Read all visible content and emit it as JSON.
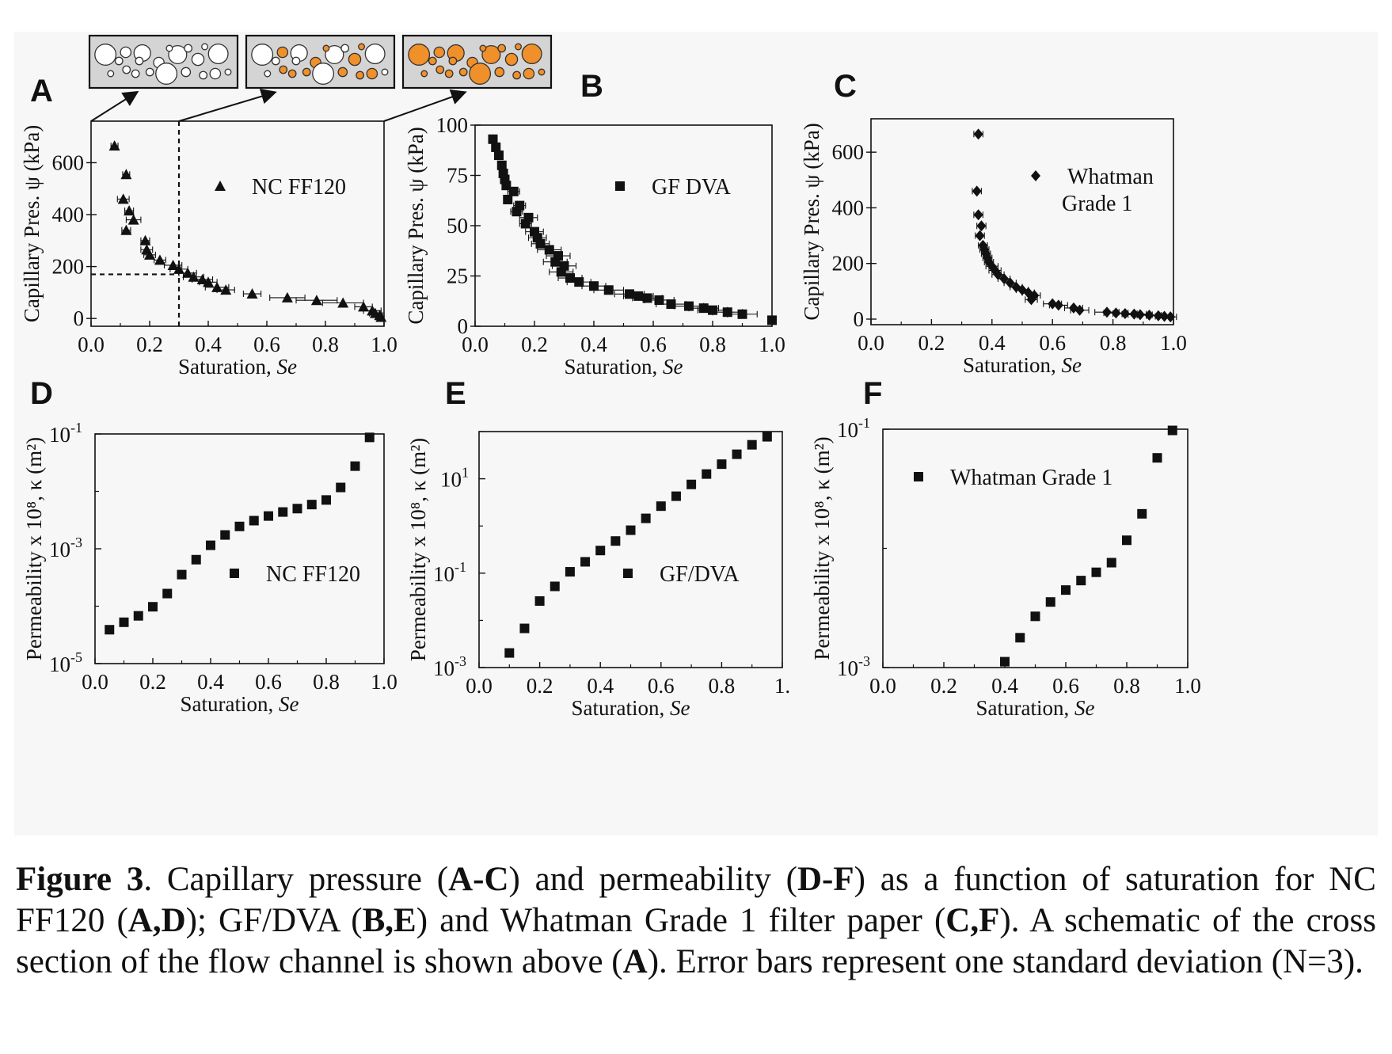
{
  "caption": {
    "figure_label": "Figure 3",
    "segments": [
      {
        "t": ". Capillary pressure (",
        "b": false
      },
      {
        "t": "A-C",
        "b": true
      },
      {
        "t": ") and permeability (",
        "b": false
      },
      {
        "t": "D-F",
        "b": true
      },
      {
        "t": ") as a function of saturation for NC FF120 (",
        "b": false
      },
      {
        "t": "A,D",
        "b": true
      },
      {
        "t": "); GF/DVA (",
        "b": false
      },
      {
        "t": "B,E",
        "b": true
      },
      {
        "t": ") and Whatman Grade 1 filter paper (",
        "b": false
      },
      {
        "t": "C,F",
        "b": true
      },
      {
        "t": "). A schematic of the cross section of the flow channel is shown above (",
        "b": false
      },
      {
        "t": "A",
        "b": true
      },
      {
        "t": "). Error bars represent one standard deviation (N=3).",
        "b": false
      }
    ]
  },
  "colors": {
    "fill_orange": "#f0902a",
    "box_gray": "#d4d4d4",
    "ink": "#111111"
  },
  "schematic": {
    "description_icons": [
      "pores-empty",
      "pores-partially-filled",
      "pores-filled"
    ]
  },
  "chart_data": [
    {
      "panel": "A",
      "type": "scatter",
      "title": "",
      "xlabel": "Saturation, ",
      "xlabel_italic": "Se",
      "ylabel": "Capillary Pres. ψ (kPa)",
      "xlim": [
        0.0,
        1.0
      ],
      "ylim": [
        -30,
        760
      ],
      "xticks": [
        "0.0",
        "0.2",
        "0.4",
        "0.6",
        "0.8",
        "1.0"
      ],
      "xtick_values": [
        0,
        0.2,
        0.4,
        0.6,
        0.8,
        1.0
      ],
      "yticks": [
        "0",
        "200",
        "400",
        "600"
      ],
      "ytick_values": [
        0,
        200,
        400,
        600
      ],
      "yscale": "linear",
      "marker": "triangle",
      "legend": [
        "NC FF120"
      ],
      "legend_placement": "upper-center",
      "dashed_reference": {
        "x": 0.3,
        "y": 170
      },
      "points": [
        {
          "x": 0.08,
          "y": 665,
          "ex": 0.012
        },
        {
          "x": 0.12,
          "y": 555,
          "ex": 0.012
        },
        {
          "x": 0.11,
          "y": 460,
          "ex": 0.02
        },
        {
          "x": 0.13,
          "y": 415,
          "ex": 0.015
        },
        {
          "x": 0.145,
          "y": 380,
          "ex": 0.025
        },
        {
          "x": 0.12,
          "y": 340,
          "ex": 0.015
        },
        {
          "x": 0.185,
          "y": 300,
          "ex": 0.015
        },
        {
          "x": 0.19,
          "y": 265,
          "ex": 0.02
        },
        {
          "x": 0.2,
          "y": 245,
          "ex": 0.02
        },
        {
          "x": 0.235,
          "y": 225,
          "ex": 0.02
        },
        {
          "x": 0.28,
          "y": 205,
          "ex": 0.03
        },
        {
          "x": 0.3,
          "y": 190,
          "ex": 0.03
        },
        {
          "x": 0.33,
          "y": 175,
          "ex": 0.03
        },
        {
          "x": 0.35,
          "y": 160,
          "ex": 0.035
        },
        {
          "x": 0.38,
          "y": 150,
          "ex": 0.035
        },
        {
          "x": 0.4,
          "y": 140,
          "ex": 0.03
        },
        {
          "x": 0.43,
          "y": 120,
          "ex": 0.04
        },
        {
          "x": 0.46,
          "y": 110,
          "ex": 0.03
        },
        {
          "x": 0.55,
          "y": 95,
          "ex": 0.03
        },
        {
          "x": 0.67,
          "y": 80,
          "ex": 0.06
        },
        {
          "x": 0.77,
          "y": 70,
          "ex": 0.07
        },
        {
          "x": 0.86,
          "y": 60,
          "ex": 0.07
        },
        {
          "x": 0.93,
          "y": 45,
          "ex": 0.03
        },
        {
          "x": 0.96,
          "y": 30,
          "ex": 0.03
        },
        {
          "x": 0.97,
          "y": 20,
          "ex": 0.02
        },
        {
          "x": 0.985,
          "y": 12,
          "ex": 0.01
        },
        {
          "x": 0.99,
          "y": 5,
          "ex": 0.01
        }
      ]
    },
    {
      "panel": "B",
      "type": "scatter",
      "title": "",
      "xlabel": "Saturation, ",
      "xlabel_italic": "Se",
      "ylabel": "Capillary Pres. ψ (kPa)",
      "xlim": [
        0.0,
        1.0
      ],
      "ylim": [
        0,
        100
      ],
      "xticks": [
        "0.0",
        "0.2",
        "0.4",
        "0.6",
        "0.8",
        "1.0"
      ],
      "xtick_values": [
        0,
        0.2,
        0.4,
        0.6,
        0.8,
        1.0
      ],
      "yticks": [
        "0",
        "25",
        "50",
        "75",
        "100"
      ],
      "ytick_values": [
        0,
        25,
        50,
        75,
        100
      ],
      "yscale": "linear",
      "marker": "square",
      "legend": [
        "GF DVA"
      ],
      "legend_placement": "upper-right",
      "points": [
        {
          "x": 0.06,
          "y": 93,
          "ex": 0.01
        },
        {
          "x": 0.07,
          "y": 89,
          "ex": 0.01
        },
        {
          "x": 0.08,
          "y": 85,
          "ex": 0.01
        },
        {
          "x": 0.09,
          "y": 80,
          "ex": 0.01
        },
        {
          "x": 0.095,
          "y": 76,
          "ex": 0.01
        },
        {
          "x": 0.1,
          "y": 73,
          "ex": 0.01
        },
        {
          "x": 0.105,
          "y": 70,
          "ex": 0.01
        },
        {
          "x": 0.13,
          "y": 67,
          "ex": 0.02
        },
        {
          "x": 0.11,
          "y": 63,
          "ex": 0.01
        },
        {
          "x": 0.15,
          "y": 60,
          "ex": 0.02
        },
        {
          "x": 0.14,
          "y": 57,
          "ex": 0.02
        },
        {
          "x": 0.18,
          "y": 54,
          "ex": 0.03
        },
        {
          "x": 0.17,
          "y": 51,
          "ex": 0.02
        },
        {
          "x": 0.2,
          "y": 47,
          "ex": 0.03
        },
        {
          "x": 0.21,
          "y": 44,
          "ex": 0.03
        },
        {
          "x": 0.22,
          "y": 41,
          "ex": 0.03
        },
        {
          "x": 0.25,
          "y": 38,
          "ex": 0.04
        },
        {
          "x": 0.28,
          "y": 35,
          "ex": 0.04
        },
        {
          "x": 0.27,
          "y": 32,
          "ex": 0.04
        },
        {
          "x": 0.3,
          "y": 30,
          "ex": 0.04
        },
        {
          "x": 0.29,
          "y": 27,
          "ex": 0.04
        },
        {
          "x": 0.32,
          "y": 24,
          "ex": 0.04
        },
        {
          "x": 0.35,
          "y": 22,
          "ex": 0.04
        },
        {
          "x": 0.4,
          "y": 20,
          "ex": 0.04
        },
        {
          "x": 0.45,
          "y": 18,
          "ex": 0.05
        },
        {
          "x": 0.52,
          "y": 16,
          "ex": 0.05
        },
        {
          "x": 0.55,
          "y": 15,
          "ex": 0.05
        },
        {
          "x": 0.58,
          "y": 14,
          "ex": 0.05
        },
        {
          "x": 0.62,
          "y": 13,
          "ex": 0.05
        },
        {
          "x": 0.66,
          "y": 11,
          "ex": 0.05
        },
        {
          "x": 0.72,
          "y": 10,
          "ex": 0.05
        },
        {
          "x": 0.77,
          "y": 9,
          "ex": 0.05
        },
        {
          "x": 0.8,
          "y": 8,
          "ex": 0.05
        },
        {
          "x": 0.85,
          "y": 7,
          "ex": 0.05
        },
        {
          "x": 0.9,
          "y": 6,
          "ex": 0.05
        },
        {
          "x": 1.0,
          "y": 3,
          "ex": 0.0
        }
      ]
    },
    {
      "panel": "C",
      "type": "scatter",
      "title": "",
      "xlabel": "Saturation, ",
      "xlabel_italic": "Se",
      "ylabel": "Capillary Pres. ψ (kPa)",
      "xlim": [
        0.0,
        1.0
      ],
      "ylim": [
        -20,
        720
      ],
      "xticks": [
        "0.0",
        "0.2",
        "0.4",
        "0.6",
        "0.8",
        "1.0"
      ],
      "xtick_values": [
        0,
        0.2,
        0.4,
        0.6,
        0.8,
        1.0
      ],
      "yticks": [
        "0",
        "200",
        "400",
        "600"
      ],
      "ytick_values": [
        0,
        200,
        400,
        600
      ],
      "yscale": "linear",
      "marker": "diamond",
      "legend": [
        "Whatman",
        "Grade 1"
      ],
      "legend_placement": "upper-right",
      "points": [
        {
          "x": 0.355,
          "y": 665,
          "ex": 0.015
        },
        {
          "x": 0.35,
          "y": 460,
          "ex": 0.015
        },
        {
          "x": 0.355,
          "y": 375,
          "ex": 0.015
        },
        {
          "x": 0.365,
          "y": 335,
          "ex": 0.015
        },
        {
          "x": 0.36,
          "y": 300,
          "ex": 0.015
        },
        {
          "x": 0.37,
          "y": 265,
          "ex": 0.015
        },
        {
          "x": 0.375,
          "y": 250,
          "ex": 0.015
        },
        {
          "x": 0.38,
          "y": 235,
          "ex": 0.015
        },
        {
          "x": 0.385,
          "y": 220,
          "ex": 0.015
        },
        {
          "x": 0.39,
          "y": 205,
          "ex": 0.015
        },
        {
          "x": 0.4,
          "y": 190,
          "ex": 0.02
        },
        {
          "x": 0.41,
          "y": 175,
          "ex": 0.02
        },
        {
          "x": 0.42,
          "y": 160,
          "ex": 0.02
        },
        {
          "x": 0.44,
          "y": 145,
          "ex": 0.02
        },
        {
          "x": 0.46,
          "y": 130,
          "ex": 0.02
        },
        {
          "x": 0.48,
          "y": 115,
          "ex": 0.02
        },
        {
          "x": 0.5,
          "y": 105,
          "ex": 0.02
        },
        {
          "x": 0.52,
          "y": 95,
          "ex": 0.02
        },
        {
          "x": 0.54,
          "y": 85,
          "ex": 0.02
        },
        {
          "x": 0.53,
          "y": 70,
          "ex": 0.02
        },
        {
          "x": 0.6,
          "y": 55,
          "ex": 0.03
        },
        {
          "x": 0.62,
          "y": 50,
          "ex": 0.03
        },
        {
          "x": 0.67,
          "y": 40,
          "ex": 0.03
        },
        {
          "x": 0.69,
          "y": 32,
          "ex": 0.03
        },
        {
          "x": 0.78,
          "y": 25,
          "ex": 0.04
        },
        {
          "x": 0.81,
          "y": 22,
          "ex": 0.04
        },
        {
          "x": 0.84,
          "y": 20,
          "ex": 0.04
        },
        {
          "x": 0.87,
          "y": 18,
          "ex": 0.04
        },
        {
          "x": 0.89,
          "y": 16,
          "ex": 0.04
        },
        {
          "x": 0.92,
          "y": 14,
          "ex": 0.04
        },
        {
          "x": 0.95,
          "y": 12,
          "ex": 0.04
        },
        {
          "x": 0.97,
          "y": 10,
          "ex": 0.03
        },
        {
          "x": 0.99,
          "y": 8,
          "ex": 0.02
        }
      ]
    },
    {
      "panel": "D",
      "type": "scatter",
      "title": "",
      "xlabel": "Saturation, ",
      "xlabel_italic": "Se",
      "ylabel": "Permeability x 10⁸, κ (m²)",
      "xlim": [
        0.0,
        1.0
      ],
      "ylim_exp": [
        -5,
        -1
      ],
      "xticks": [
        "0.0",
        "0.2",
        "0.4",
        "0.6",
        "0.8",
        "1.0"
      ],
      "xtick_values": [
        0,
        0.2,
        0.4,
        0.6,
        0.8,
        1.0
      ],
      "yticks": [
        "10⁻¹",
        "10⁻³",
        "10⁻⁵"
      ],
      "ytick_exponents": [
        -1,
        -3,
        -5
      ],
      "yscale": "log",
      "marker": "square",
      "legend": [
        "NC FF120"
      ],
      "legend_placement": "lower-right",
      "points": [
        {
          "x": 0.05,
          "y": 3.89e-05
        },
        {
          "x": 0.1,
          "y": 5.25e-05
        },
        {
          "x": 0.15,
          "y": 6.79e-05
        },
        {
          "x": 0.2,
          "y": 9.77e-05
        },
        {
          "x": 0.25,
          "y": 0.000166
        },
        {
          "x": 0.3,
          "y": 0.000355
        },
        {
          "x": 0.35,
          "y": 0.000646
        },
        {
          "x": 0.4,
          "y": 0.00115
        },
        {
          "x": 0.45,
          "y": 0.00174
        },
        {
          "x": 0.5,
          "y": 0.00245
        },
        {
          "x": 0.55,
          "y": 0.00309
        },
        {
          "x": 0.6,
          "y": 0.00372
        },
        {
          "x": 0.65,
          "y": 0.00437
        },
        {
          "x": 0.7,
          "y": 0.00501
        },
        {
          "x": 0.75,
          "y": 0.00589
        },
        {
          "x": 0.8,
          "y": 0.00708
        },
        {
          "x": 0.85,
          "y": 0.0117
        },
        {
          "x": 0.9,
          "y": 0.0275
        },
        {
          "x": 0.95,
          "y": 0.0871
        }
      ]
    },
    {
      "panel": "E",
      "type": "scatter",
      "title": "",
      "xlabel": "Saturation, ",
      "xlabel_italic": "Se",
      "ylabel": "Permeability x 10⁸, κ (m²)",
      "xlim": [
        0.0,
        1.0
      ],
      "ylim_exp": [
        -3,
        2
      ],
      "xticks": [
        "0.0",
        "0.2",
        "0.4",
        "0.6",
        "0.8",
        "1."
      ],
      "xtick_values": [
        0,
        0.2,
        0.4,
        0.6,
        0.8,
        1.0
      ],
      "yticks": [
        "10¹",
        "10⁻¹",
        "10⁻³"
      ],
      "ytick_exponents": [
        1,
        -1,
        -3
      ],
      "yscale": "log",
      "marker": "square",
      "legend": [
        "GF/DVA"
      ],
      "legend_placement": "lower-right",
      "points": [
        {
          "x": 0.1,
          "y": 0.00204
        },
        {
          "x": 0.15,
          "y": 0.00676
        },
        {
          "x": 0.2,
          "y": 0.0257
        },
        {
          "x": 0.25,
          "y": 0.0525
        },
        {
          "x": 0.3,
          "y": 0.107
        },
        {
          "x": 0.35,
          "y": 0.174
        },
        {
          "x": 0.4,
          "y": 0.302
        },
        {
          "x": 0.45,
          "y": 0.48
        },
        {
          "x": 0.5,
          "y": 0.813
        },
        {
          "x": 0.55,
          "y": 1.45
        },
        {
          "x": 0.6,
          "y": 2.63
        },
        {
          "x": 0.65,
          "y": 4.27
        },
        {
          "x": 0.7,
          "y": 7.59
        },
        {
          "x": 0.75,
          "y": 12.6
        },
        {
          "x": 0.8,
          "y": 20.4
        },
        {
          "x": 0.85,
          "y": 33.1
        },
        {
          "x": 0.9,
          "y": 52.5
        },
        {
          "x": 0.95,
          "y": 77.6
        }
      ]
    },
    {
      "panel": "F",
      "type": "scatter",
      "title": "",
      "xlabel": "Saturation, ",
      "xlabel_italic": "Se",
      "ylabel": "Permeability x 10⁸, κ (m²)",
      "xlim": [
        0.0,
        1.0
      ],
      "ylim_exp": [
        -3,
        -1
      ],
      "xticks": [
        "0.0",
        "0.2",
        "0.4",
        "0.6",
        "0.8",
        "1.0"
      ],
      "xtick_values": [
        0,
        0.2,
        0.4,
        0.6,
        0.8,
        1.0
      ],
      "yticks": [
        "10⁻¹",
        "10⁻³"
      ],
      "ytick_exponents": [
        -1,
        -3
      ],
      "yscale": "log",
      "marker": "square",
      "legend": [
        "Whatman Grade 1"
      ],
      "legend_placement": "upper-left",
      "points": [
        {
          "x": 0.4,
          "y": 0.00112
        },
        {
          "x": 0.45,
          "y": 0.00178
        },
        {
          "x": 0.5,
          "y": 0.00269
        },
        {
          "x": 0.55,
          "y": 0.00355
        },
        {
          "x": 0.6,
          "y": 0.00447
        },
        {
          "x": 0.65,
          "y": 0.00537
        },
        {
          "x": 0.7,
          "y": 0.0063
        },
        {
          "x": 0.75,
          "y": 0.00759
        },
        {
          "x": 0.8,
          "y": 0.0117
        },
        {
          "x": 0.85,
          "y": 0.0195
        },
        {
          "x": 0.9,
          "y": 0.0575
        },
        {
          "x": 0.95,
          "y": 0.0977
        }
      ]
    }
  ]
}
